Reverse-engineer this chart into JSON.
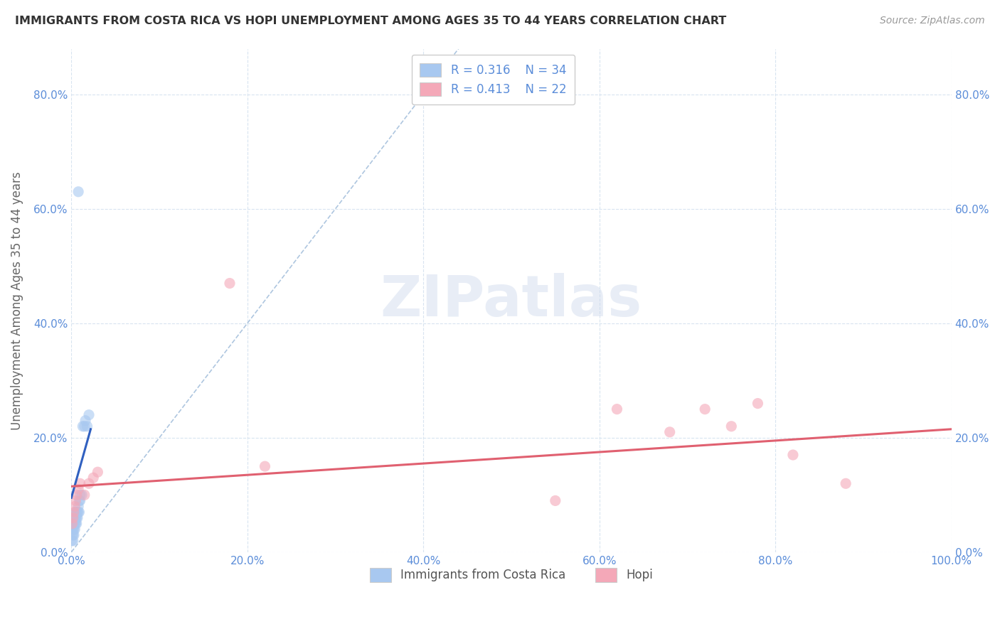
{
  "title": "IMMIGRANTS FROM COSTA RICA VS HOPI UNEMPLOYMENT AMONG AGES 35 TO 44 YEARS CORRELATION CHART",
  "source": "Source: ZipAtlas.com",
  "ylabel": "Unemployment Among Ages 35 to 44 years",
  "watermark": "ZIPatlas",
  "legend_blue_r": "R = 0.316",
  "legend_blue_n": "N = 34",
  "legend_pink_r": "R = 0.413",
  "legend_pink_n": "N = 22",
  "legend_label_blue": "Immigrants from Costa Rica",
  "legend_label_pink": "Hopi",
  "xlim": [
    0.0,
    1.0
  ],
  "ylim": [
    0.0,
    0.88
  ],
  "xticks": [
    0.0,
    0.2,
    0.4,
    0.6,
    0.8,
    1.0
  ],
  "yticks": [
    0.0,
    0.2,
    0.4,
    0.6,
    0.8
  ],
  "blue_scatter_x": [
    0.0005,
    0.001,
    0.001,
    0.0015,
    0.002,
    0.002,
    0.002,
    0.003,
    0.003,
    0.003,
    0.004,
    0.004,
    0.004,
    0.005,
    0.005,
    0.005,
    0.006,
    0.006,
    0.006,
    0.007,
    0.007,
    0.008,
    0.008,
    0.009,
    0.009,
    0.01,
    0.01,
    0.012,
    0.013,
    0.015,
    0.016,
    0.018,
    0.02,
    0.008
  ],
  "blue_scatter_y": [
    0.02,
    0.03,
    0.04,
    0.05,
    0.02,
    0.03,
    0.04,
    0.03,
    0.04,
    0.05,
    0.04,
    0.05,
    0.06,
    0.05,
    0.06,
    0.07,
    0.05,
    0.06,
    0.07,
    0.06,
    0.07,
    0.07,
    0.08,
    0.07,
    0.09,
    0.09,
    0.1,
    0.1,
    0.22,
    0.22,
    0.23,
    0.22,
    0.24,
    0.63
  ],
  "pink_scatter_x": [
    0.001,
    0.002,
    0.003,
    0.004,
    0.005,
    0.006,
    0.008,
    0.01,
    0.015,
    0.02,
    0.025,
    0.03,
    0.18,
    0.22,
    0.55,
    0.62,
    0.68,
    0.72,
    0.75,
    0.78,
    0.82,
    0.88
  ],
  "pink_scatter_y": [
    0.05,
    0.06,
    0.07,
    0.08,
    0.09,
    0.1,
    0.11,
    0.12,
    0.1,
    0.12,
    0.13,
    0.14,
    0.47,
    0.15,
    0.09,
    0.25,
    0.21,
    0.25,
    0.22,
    0.26,
    0.17,
    0.12
  ],
  "blue_line_x": [
    0.0,
    0.022
  ],
  "blue_line_y": [
    0.095,
    0.215
  ],
  "pink_line_x": [
    0.0,
    1.0
  ],
  "pink_line_y": [
    0.115,
    0.215
  ],
  "dashed_line_x": [
    0.0,
    0.44
  ],
  "dashed_line_y": [
    0.0,
    0.88
  ],
  "blue_color": "#a8c8f0",
  "pink_color": "#f4a8b8",
  "blue_line_color": "#3060c0",
  "pink_line_color": "#e06070",
  "dashed_line_color": "#9ab8d8",
  "title_color": "#333333",
  "tick_color": "#5b8dd9",
  "ylabel_color": "#666666",
  "background_color": "#ffffff",
  "grid_color": "#d8e4f0"
}
